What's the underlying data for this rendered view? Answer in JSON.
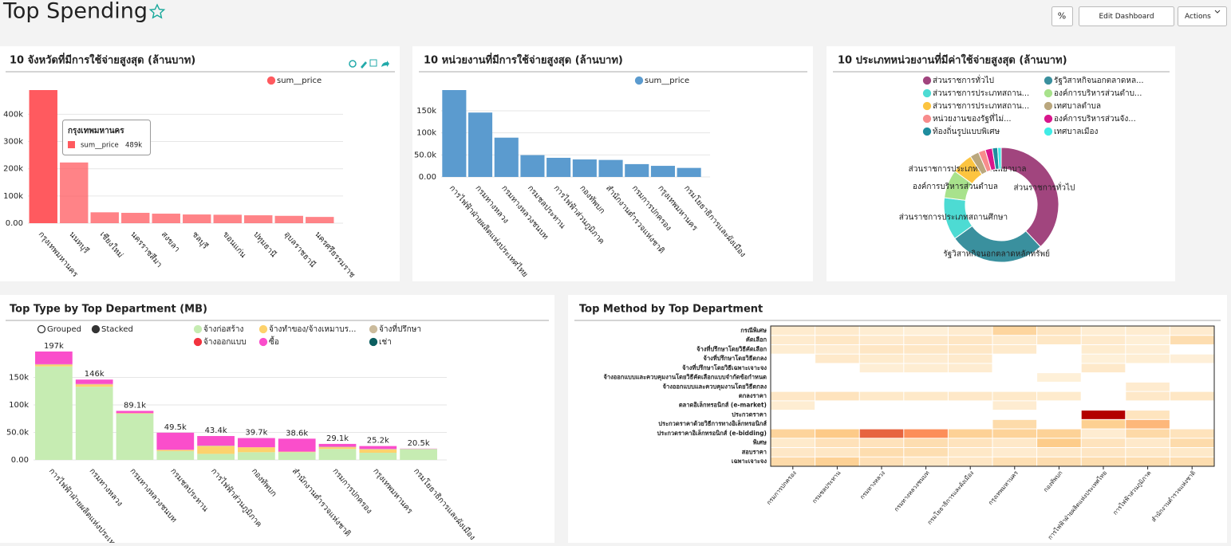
{
  "header": {
    "title": "Top Spending",
    "buttons": [
      "Edit Dashboard",
      "Actions"
    ]
  },
  "chart_data": [
    {
      "type": "bar",
      "title": "10 จังหวัดที่มีการใช้จ่ายสูงสุด (ล้านบาท)",
      "categories": [
        "กรุงเทพมหานคร",
        "นนทบุรี",
        "เชียงใหม่",
        "นครราชสีมา",
        "สงขลา",
        "ชลบุรี",
        "ขอนแก่น",
        "ปทุมธานี",
        "อุบลราชธานี",
        "นครศรีธรรมราช"
      ],
      "series": [
        {
          "name": "sum__price",
          "color": "#ff5a5f",
          "values": [
            489000,
            223000,
            40000,
            38000,
            35000,
            32000,
            31000,
            29000,
            27000,
            23000
          ]
        }
      ],
      "ylim": [
        0,
        489000
      ],
      "yticks": [
        {
          "value": 0,
          "label": "0.00"
        },
        {
          "value": 100000,
          "label": "100k"
        },
        {
          "value": 200000,
          "label": "200k"
        },
        {
          "value": 300000,
          "label": "300k"
        },
        {
          "value": 400000,
          "label": "400k"
        }
      ],
      "grid": true,
      "legend": "top",
      "tooltip_label": "489k"
    },
    {
      "type": "bar",
      "title": "10 หน่วยงานที่มีการใช้จ่ายสูงสุด (ล้านบาท)",
      "categories": [
        "การไฟฟ้าฝ่ายผลิตแห่งประเทศไทย",
        "กรมทางหลวง",
        "กรมทางหลวงชนบท",
        "กรมชลประทาน",
        "การไฟฟ้าส่วนภูมิภาค",
        "กองทัพบก",
        "สำนักงานตำรวจแห่งชาติ",
        "กรมการปกครอง",
        "กรุงเทพมหานคร",
        "กรมโยธาธิการและผังเมือง"
      ],
      "series": [
        {
          "name": "sum__price",
          "color": "#5b9bcf",
          "values": [
            197000,
            146000,
            89100,
            49500,
            43400,
            39700,
            38600,
            29100,
            25200,
            20500
          ]
        }
      ],
      "ylim": [
        0,
        197000
      ],
      "yticks": [
        {
          "value": 0,
          "label": "0.00"
        },
        {
          "value": 50000,
          "label": "50.0k"
        },
        {
          "value": 100000,
          "label": "100k"
        },
        {
          "value": 150000,
          "label": "150k"
        }
      ],
      "grid": true,
      "legend": "top"
    },
    {
      "type": "pie",
      "title": "10 ประเภทหน่วยงานที่มีค่าใช้จ่ายสูงสุด (ล้านบาท)",
      "categories": [
        "ส่วนราชการทั่วไป",
        "รัฐวิสาหกิจนอกตลาดหล...",
        "ส่วนราชการประเภทสถาน...",
        "องค์การบริหารส่วนตำบ...",
        "ส่วนราชการประเภทสถาน...",
        "เทศบาลตำบล",
        "หน่วยงานของรัฐที่ไม่...",
        "องค์การบริหารส่วนจัง...",
        "ท้องถิ่นรูปแบบพิเศษ",
        "เทศบาลเมือง"
      ],
      "slice_labels": [
        "ส่วนราชการทั่วไป",
        "รัฐวิสาหกิจนอกตลาดหลักทรัพย์",
        "ส่วนราชการประเภทสถานศึกษา",
        "องค์การบริหารส่วนตำบล",
        "ส่วนราชการประเภทสถานพยาบาล",
        null,
        null,
        null,
        null,
        null
      ],
      "values": [
        38,
        27,
        12,
        8,
        6,
        2.5,
        2,
        2,
        1.5,
        1
      ],
      "colors": [
        "#a1457e",
        "#3a909e",
        "#4ddbd3",
        "#a8e28c",
        "#fcc440",
        "#baa77e",
        "#f88c8c",
        "#d8168c",
        "#1f8d9e",
        "#40ece6"
      ],
      "legend": "top"
    },
    {
      "type": "bar",
      "stacked": true,
      "title": "Top Type by Top Department (MB)",
      "controls": [
        "Grouped",
        "Stacked"
      ],
      "categories": [
        "การไฟฟ้าฝ่ายผลิตแห่งประเทศไทย",
        "กรมทางหลวง",
        "กรมทางหลวงชนบท",
        "กรมชลประทาน",
        "การไฟฟ้าส่วนภูมิภาค",
        "กองทัพบก",
        "สำนักงานตำรวจแห่งชาติ",
        "กรมการปกครอง",
        "กรุงเทพมหานคร",
        "กรมโยธาธิการและผังเมือง"
      ],
      "series": [
        {
          "name": "จ้างก่อสร้าง",
          "color": "#c6ecb2",
          "values": [
            170000,
            133000,
            84000,
            16000,
            11000,
            14000,
            14000,
            20000,
            13000,
            20000
          ]
        },
        {
          "name": "จ้างทำของ/จ้างเหมาบร...",
          "color": "#fdd26c",
          "values": [
            3000,
            4000,
            1000,
            2000,
            14000,
            9000,
            1000,
            3000,
            6000,
            0
          ]
        },
        {
          "name": "จ้างที่ปรึกษา",
          "color": "#cbbb9c",
          "values": [
            1000,
            1000,
            0,
            500,
            1000,
            0,
            0,
            1000,
            1000,
            0
          ]
        },
        {
          "name": "จ้างออกแบบ",
          "color": "#f2333f",
          "values": [
            0,
            0,
            0,
            0,
            0,
            0,
            0,
            0,
            0,
            0
          ]
        },
        {
          "name": "ซื้อ",
          "color": "#fa4ecb",
          "values": [
            23000,
            8000,
            4100,
            31000,
            17400,
            16700,
            23600,
            5100,
            5200,
            500
          ]
        },
        {
          "name": "เช่า",
          "color": "#0b5e60",
          "values": [
            0,
            0,
            0,
            0,
            0,
            0,
            0,
            0,
            0,
            0
          ]
        }
      ],
      "total_labels": [
        "197k",
        "146k",
        "89.1k",
        "49.5k",
        "43.4k",
        "39.7k",
        "38.6k",
        "29.1k",
        "25.2k",
        "20.5k"
      ],
      "ylim": [
        0,
        197000
      ],
      "yticks": [
        {
          "value": 0,
          "label": "0.00"
        },
        {
          "value": 50000,
          "label": "50.0k"
        },
        {
          "value": 100000,
          "label": "100k"
        },
        {
          "value": 150000,
          "label": "150k"
        }
      ],
      "grid": true,
      "legend": "top"
    },
    {
      "type": "heatmap",
      "title": "Top Method by Top Department",
      "rows": [
        "กรณีพิเศษ",
        "คัดเลือก",
        "จ้างที่ปรึกษาโดยวิธีคัดเลือก",
        "จ้างที่ปรึกษาโดยวิธีตกลง",
        "จ้างที่ปรึกษาโดยวิธีเฉพาะเจาะจง",
        "จ้างออกแบบและควบคุมงานโดยวิธีคัดเลือกแบบจำกัดข้อกำหนด",
        "จ้างออกแบบและควบคุมงานโดยวิธีตกลง",
        "ตกลงราคา",
        "ตลาดอิเล็กทรอนิกส์ (e-market)",
        "ประกวดราคา",
        "ประกวดราคาด้วยวิธีการทางอิเล็กทรอนิกส์",
        "ประกวดราคาอิเล็กทรอนิกส์ (e-bidding)",
        "พิเศษ",
        "สอบราคา",
        "เฉพาะเจาะจง"
      ],
      "columns": [
        "กรมการปกครอง",
        "กรมชลประทาน",
        "กรมทางหลวง",
        "กรมทางหลวงชนบท",
        "กรมโยธาธิการและผังเมือง",
        "กรุงเทพมหานคร",
        "กองทัพบก",
        "การไฟฟ้าฝ่ายผลิตแห่งประเทศไทย",
        "การไฟฟ้าส่วนภูมิภาค",
        "สำนักงานตำรวจแห่งชาติ"
      ],
      "values": [
        [
          368,
          508,
          136,
          14.9,
          300,
          10700,
          1780,
          110,
          220,
          306
        ],
        [
          337,
          1200,
          463,
          826,
          1360,
          337,
          1170,
          476,
          24.4,
          5070
        ],
        [
          140,
          211,
          1350,
          1070,
          1100,
          510,
          null,
          282,
          50.4,
          null
        ],
        [
          null,
          720,
          430,
          186,
          513,
          null,
          null,
          1.8,
          71.8,
          4.8
        ],
        [
          null,
          null,
          40.3,
          141,
          208,
          null,
          null,
          686,
          null,
          null
        ],
        [
          null,
          null,
          null,
          null,
          null,
          null,
          3.46,
          null,
          null,
          null
        ],
        [
          null,
          null,
          null,
          null,
          null,
          null,
          null,
          null,
          301,
          null
        ],
        [
          1130,
          2470,
          820,
          817,
          884,
          806,
          404,
          null,
          880,
          1210
        ],
        [
          150,
          null,
          null,
          null,
          null,
          203,
          null,
          null,
          null,
          null
        ],
        [
          null,
          null,
          null,
          null,
          null,
          null,
          null,
          171000,
          2290,
          null
        ],
        [
          null,
          null,
          null,
          null,
          null,
          6770,
          null,
          15200,
          33700,
          null
        ],
        [
          11300,
          20400,
          100000,
          75300,
          13700,
          12300,
          13300,
          202,
          7600,
          2510
        ],
        [
          577,
          3200,
          2700,
          5060,
          2470,
          870,
          18800,
          2460,
          670,
          6350
        ],
        [
          1090,
          1200,
          5460,
          4800,
          960,
          300,
          854,
          1360,
          958,
          734
        ],
        [
          7060,
          14100,
          4050,
          1230,
          1370,
          4410,
          5680,
          5360,
          5280,
          5370
        ]
      ],
      "colors": [
        "#fef0d9",
        "#fdcc8a",
        "#fc8d59",
        "#b30000"
      ]
    }
  ]
}
